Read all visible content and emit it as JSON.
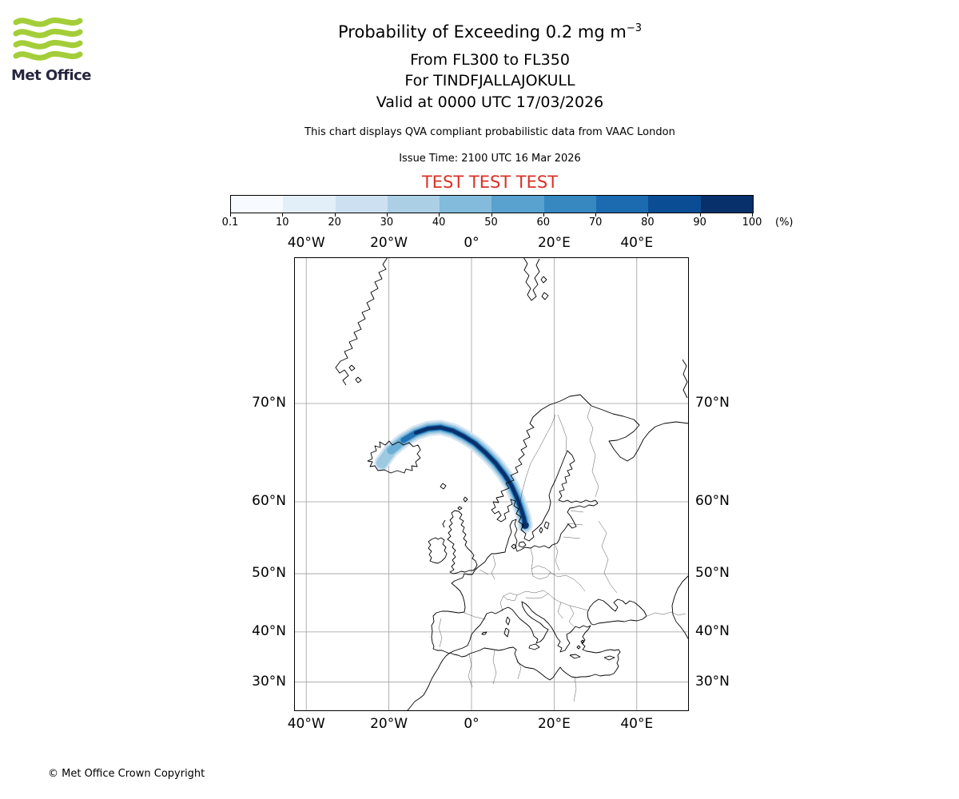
{
  "logo": {
    "brand": "Met Office",
    "wave_color": "#a4ce39",
    "text_color": "#26263e"
  },
  "header": {
    "title_main": "Probability of Exceeding 0.2 mg m",
    "title_sup": "−3",
    "flight_levels": "From FL300 to FL350",
    "volcano": "For TINDFJALLAJOKULL",
    "valid": "Valid at 0000 UTC 17/03/2026",
    "description": "This chart displays QVA compliant probabilistic data from VAAC London",
    "issue_time": "Issue Time: 2100 UTC 16 Mar 2026",
    "test_banner": "TEST TEST TEST",
    "test_color": "#d93025"
  },
  "colorbar": {
    "tick_labels": [
      "0.1",
      "10",
      "20",
      "30",
      "40",
      "50",
      "60",
      "70",
      "80",
      "90",
      "100"
    ],
    "unit": "(%)",
    "colors": [
      "#f7fbff",
      "#e2eef8",
      "#cde0f1",
      "#abd0e6",
      "#82bbdb",
      "#59a1cf",
      "#3787c0",
      "#1c6bb0",
      "#0b4d94",
      "#08306b"
    ]
  },
  "map": {
    "lon_tick_labels": [
      "40°W",
      "20°W",
      "0°",
      "20°E",
      "40°E"
    ],
    "lat_tick_labels": [
      "70°N",
      "60°N",
      "50°N",
      "40°N",
      "30°N"
    ],
    "plume": {
      "track": [
        [
          -21.7,
          64.4
        ],
        [
          -19.5,
          65.7
        ],
        [
          -16.5,
          66.7
        ],
        [
          -13.5,
          67.4
        ],
        [
          -10.5,
          67.8
        ],
        [
          -7.5,
          67.9
        ],
        [
          -4.5,
          67.6
        ],
        [
          -2,
          67.1
        ],
        [
          0.8,
          66.4
        ],
        [
          3.3,
          65.5
        ],
        [
          5.8,
          64.4
        ],
        [
          7.9,
          63.2
        ],
        [
          9.7,
          61.9
        ],
        [
          11,
          60.5
        ],
        [
          12,
          59.1
        ],
        [
          12.7,
          57.9
        ],
        [
          13,
          57
        ]
      ],
      "layers": [
        {
          "color": "#d3e4f3",
          "width": 19,
          "trim": 0
        },
        {
          "color": "#9ecae1",
          "width": 14,
          "trim": 0
        },
        {
          "color": "#6baed6",
          "width": 10,
          "trim": 1
        },
        {
          "color": "#2171b5",
          "width": 7,
          "trim": 2
        },
        {
          "color": "#08306b",
          "width": 4.5,
          "trim": 3
        }
      ]
    }
  },
  "footer": {
    "copyright": "© Met Office Crown Copyright"
  }
}
